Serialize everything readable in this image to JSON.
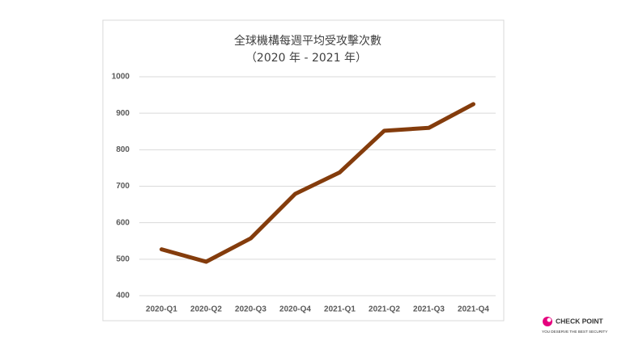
{
  "chart_data": {
    "type": "line",
    "title": "全球機構每週平均受攻擊次數",
    "subtitle": "（2020 年 - 2021 年）",
    "categories": [
      "2020-Q1",
      "2020-Q2",
      "2020-Q3",
      "2020-Q4",
      "2021-Q1",
      "2021-Q2",
      "2021-Q3",
      "2021-Q4"
    ],
    "values": [
      527,
      493,
      557,
      679,
      738,
      852,
      860,
      925
    ],
    "color": "#843c0c",
    "ylim": [
      400,
      1000
    ],
    "yticks": [
      400,
      500,
      600,
      700,
      800,
      900,
      1000
    ],
    "grid": true
  },
  "logo": {
    "name": "CHECK POINT",
    "tagline": "YOU DESERVE THE BEST SECURITY"
  }
}
